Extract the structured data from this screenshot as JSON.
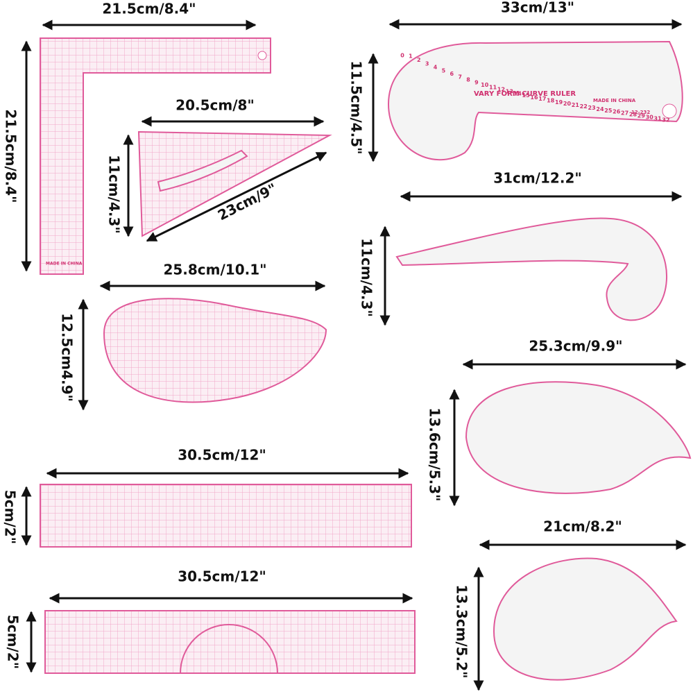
{
  "rulers": [
    {
      "width_label": "21.5cm/8.4\"",
      "height_label": "21.5cm/8.4\"",
      "imprint": "MADE IN CHINA"
    },
    {
      "width_label": "20.5cm/8\"",
      "height_label": "11cm/4.3\"",
      "diagonal_label": "23cm/9\""
    },
    {
      "width_label": "25.8cm/10.1\"",
      "height_label": "12.5cm4.9\""
    },
    {
      "width_label": "30.5cm/12\"",
      "height_label": "5cm/2\""
    },
    {
      "width_label": "30.5cm/12\"",
      "height_label": "5cm/2\""
    },
    {
      "width_label": "33cm/13\"",
      "height_label": "11.5cm/4.5\"",
      "name": "VARY FORM CURVE RULER",
      "imprint": "MADE IN CHINA",
      "model": "12-232",
      "scale_numbers": [
        0,
        1,
        2,
        3,
        4,
        5,
        6,
        7,
        8,
        9,
        10,
        11,
        12,
        13,
        14,
        15,
        16,
        17,
        18,
        19,
        20,
        21,
        22,
        23,
        24,
        25,
        26,
        27,
        28,
        29,
        30,
        31,
        32
      ]
    },
    {
      "width_label": "31cm/12.2\"",
      "height_label": "11cm/4.3\""
    },
    {
      "width_label": "25.3cm/9.9\"",
      "height_label": "13.6cm/5.3\""
    },
    {
      "width_label": "21cm/8.2\"",
      "height_label": "13.3cm/5.2\""
    }
  ]
}
